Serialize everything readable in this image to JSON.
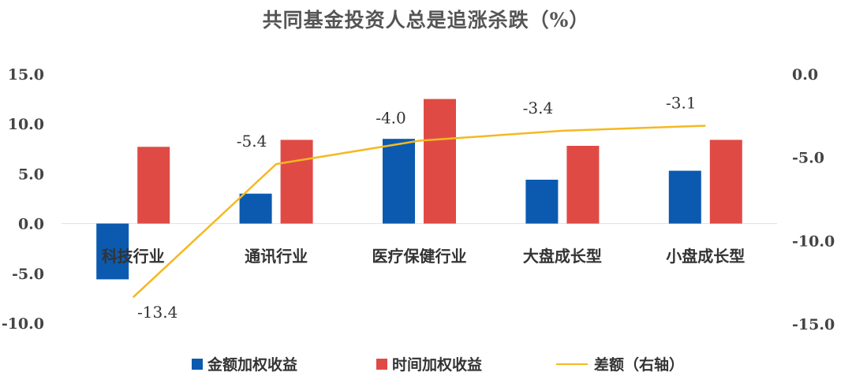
{
  "chart_data": {
    "type": "bar",
    "title": "共同基金投资人总是追涨杀跌（%）",
    "categories": [
      "科技行业",
      "通讯行业",
      "医疗保健行业",
      "大盘成长型",
      "小盘成长型"
    ],
    "series": [
      {
        "name": "金额加权收益",
        "type": "bar",
        "axis": "left",
        "color": "#0B5AB0",
        "values": [
          -5.6,
          3.0,
          8.5,
          4.4,
          5.3
        ]
      },
      {
        "name": "时间加权收益",
        "type": "bar",
        "axis": "left",
        "color": "#E04A45",
        "values": [
          7.7,
          8.4,
          12.5,
          7.8,
          8.4
        ]
      },
      {
        "name": "差额（右轴）",
        "type": "line",
        "axis": "right",
        "color": "#F5B821",
        "values": [
          -13.4,
          -5.4,
          -4.0,
          -3.4,
          -3.1
        ],
        "labels": [
          "-13.4",
          "-5.4",
          "-4.0",
          "-3.4",
          "-3.1"
        ]
      }
    ],
    "left_axis": {
      "ylim": [
        -10,
        15
      ],
      "ticks": [
        "15.0",
        "10.0",
        "5.0",
        "0.0",
        "-5.0",
        "-10.0"
      ]
    },
    "right_axis": {
      "ylim": [
        -15,
        0
      ],
      "ticks": [
        "0.0",
        "-5.0",
        "-10.0",
        "-15.0"
      ]
    },
    "grid": false,
    "legend_position": "bottom"
  }
}
